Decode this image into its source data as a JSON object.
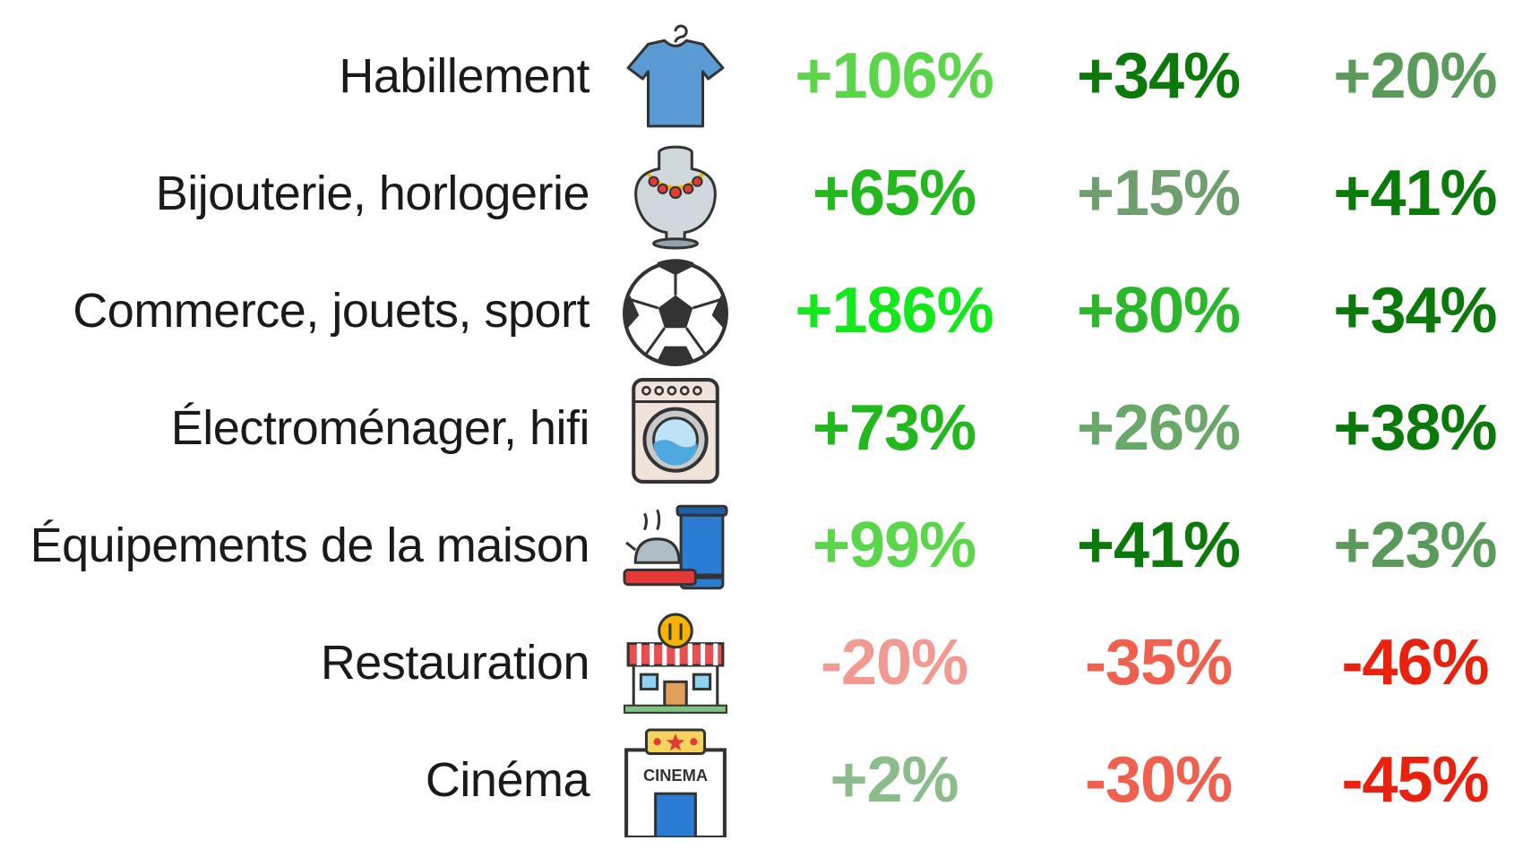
{
  "chart_data": {
    "type": "table",
    "rows": [
      {
        "category": "Habillement",
        "icon": "t-shirt-icon",
        "values": [
          "+106%",
          "+34%",
          "+20%"
        ],
        "colors": [
          "#5bd64a",
          "#0b7a0b",
          "#5a9a5a"
        ]
      },
      {
        "category": "Bijouterie, horlogerie",
        "icon": "necklace-bust-icon",
        "values": [
          "+65%",
          "+15%",
          "+41%"
        ],
        "colors": [
          "#22b81e",
          "#6f9e6f",
          "#0b7a0b"
        ]
      },
      {
        "category": "Commerce, jouets, sport",
        "icon": "soccer-ball-icon",
        "values": [
          "+186%",
          "+80%",
          "+34%"
        ],
        "colors": [
          "#12e81a",
          "#2ab82a",
          "#0b7a0b"
        ]
      },
      {
        "category": "Électroménager, hifi",
        "icon": "washing-machine-icon",
        "values": [
          "+73%",
          "+26%",
          "+38%"
        ],
        "colors": [
          "#22b81e",
          "#6aa86a",
          "#0b7a0b"
        ]
      },
      {
        "category": "Équipements de la maison",
        "icon": "kitchenware-icon",
        "values": [
          "+99%",
          "+41%",
          "+23%"
        ],
        "colors": [
          "#5bd64a",
          "#0b7a0b",
          "#5a9a5a"
        ]
      },
      {
        "category": "Restauration",
        "icon": "restaurant-icon",
        "values": [
          "-20%",
          "-35%",
          "-46%"
        ],
        "colors": [
          "#f29a92",
          "#f0604f",
          "#e8220e"
        ]
      },
      {
        "category": "Cinéma",
        "icon": "cinema-icon",
        "values": [
          "+2%",
          "-30%",
          "-45%"
        ],
        "colors": [
          "#8cbc8c",
          "#f0604f",
          "#e8220e"
        ]
      }
    ]
  }
}
